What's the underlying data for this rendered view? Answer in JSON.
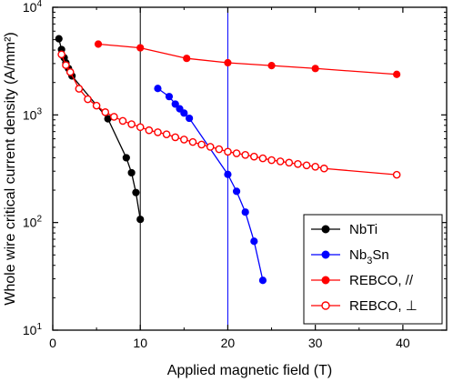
{
  "chart_data": {
    "type": "scatter",
    "title": "",
    "xlabel": "Applied magnetic field (T)",
    "ylabel": "Whole wire critical current density (A/mm²)",
    "xlim": [
      0,
      45
    ],
    "ylim": [
      10,
      10000
    ],
    "yscale": "log",
    "x_ticks": [
      0,
      10,
      20,
      30,
      40
    ],
    "y_ticks": [
      {
        "value": 10,
        "base": "10",
        "exp": "1"
      },
      {
        "value": 100,
        "base": "10",
        "exp": "2"
      },
      {
        "value": 1000,
        "base": "10",
        "exp": "3"
      },
      {
        "value": 10000,
        "base": "10",
        "exp": "4"
      }
    ],
    "grid": false,
    "legend_position": "bottom-right",
    "reference_lines": [
      {
        "x": 10,
        "color": "#000000"
      },
      {
        "x": 20,
        "color": "#0000ff"
      }
    ],
    "series": [
      {
        "name": "NbTi",
        "name_base": "NbTi",
        "name_sub": "",
        "name_tail": "",
        "color": "#000000",
        "marker": "filled-circle",
        "points": [
          [
            0.7,
            5100
          ],
          [
            1.0,
            4050
          ],
          [
            1.3,
            3400
          ],
          [
            1.5,
            3050
          ],
          [
            1.8,
            2700
          ],
          [
            2.0,
            2500
          ],
          [
            2.2,
            2300
          ],
          [
            6.3,
            920
          ],
          [
            8.4,
            400
          ],
          [
            9.0,
            290
          ],
          [
            9.5,
            190
          ],
          [
            10.0,
            107
          ]
        ]
      },
      {
        "name": "Nb3Sn",
        "name_base": "Nb",
        "name_sub": "3",
        "name_tail": "Sn",
        "color": "#0000ff",
        "marker": "filled-circle",
        "points": [
          [
            12.0,
            1760
          ],
          [
            13.3,
            1480
          ],
          [
            14.0,
            1260
          ],
          [
            14.5,
            1140
          ],
          [
            15.0,
            1040
          ],
          [
            15.6,
            930
          ],
          [
            20.0,
            280
          ],
          [
            21.0,
            195
          ],
          [
            22.0,
            125
          ],
          [
            23.0,
            67
          ],
          [
            24.0,
            29
          ]
        ]
      },
      {
        "name": "REBCO, //",
        "name_base": "REBCO, //",
        "name_sub": "",
        "name_tail": "",
        "color": "#ff0000",
        "marker": "filled-circle",
        "points": [
          [
            5.2,
            4550
          ],
          [
            10.0,
            4200
          ],
          [
            15.3,
            3350
          ],
          [
            20.0,
            3050
          ],
          [
            25.0,
            2870
          ],
          [
            30.0,
            2700
          ],
          [
            39.3,
            2380
          ]
        ]
      },
      {
        "name": "REBCO, ⊥",
        "name_base": "REBCO, ⊥",
        "name_sub": "",
        "name_tail": "",
        "color": "#ff0000",
        "marker": "open-circle",
        "points": [
          [
            1.0,
            3650
          ],
          [
            1.5,
            2900
          ],
          [
            2.0,
            2500
          ],
          [
            3.0,
            1750
          ],
          [
            4.0,
            1400
          ],
          [
            5.0,
            1220
          ],
          [
            6.0,
            1060
          ],
          [
            7.0,
            960
          ],
          [
            8.0,
            880
          ],
          [
            9.0,
            820
          ],
          [
            10.0,
            770
          ],
          [
            11.0,
            720
          ],
          [
            12.0,
            690
          ],
          [
            13.0,
            660
          ],
          [
            14.0,
            620
          ],
          [
            15.0,
            590
          ],
          [
            16.0,
            560
          ],
          [
            17.0,
            530
          ],
          [
            18.0,
            505
          ],
          [
            19.0,
            480
          ],
          [
            20.0,
            455
          ],
          [
            21.0,
            440
          ],
          [
            22.0,
            425
          ],
          [
            23.0,
            410
          ],
          [
            24.0,
            395
          ],
          [
            25.0,
            380
          ],
          [
            26.0,
            370
          ],
          [
            27.0,
            360
          ],
          [
            28.0,
            350
          ],
          [
            29.0,
            340
          ],
          [
            30.0,
            330
          ],
          [
            31.0,
            318
          ],
          [
            39.3,
            278
          ]
        ]
      }
    ]
  }
}
